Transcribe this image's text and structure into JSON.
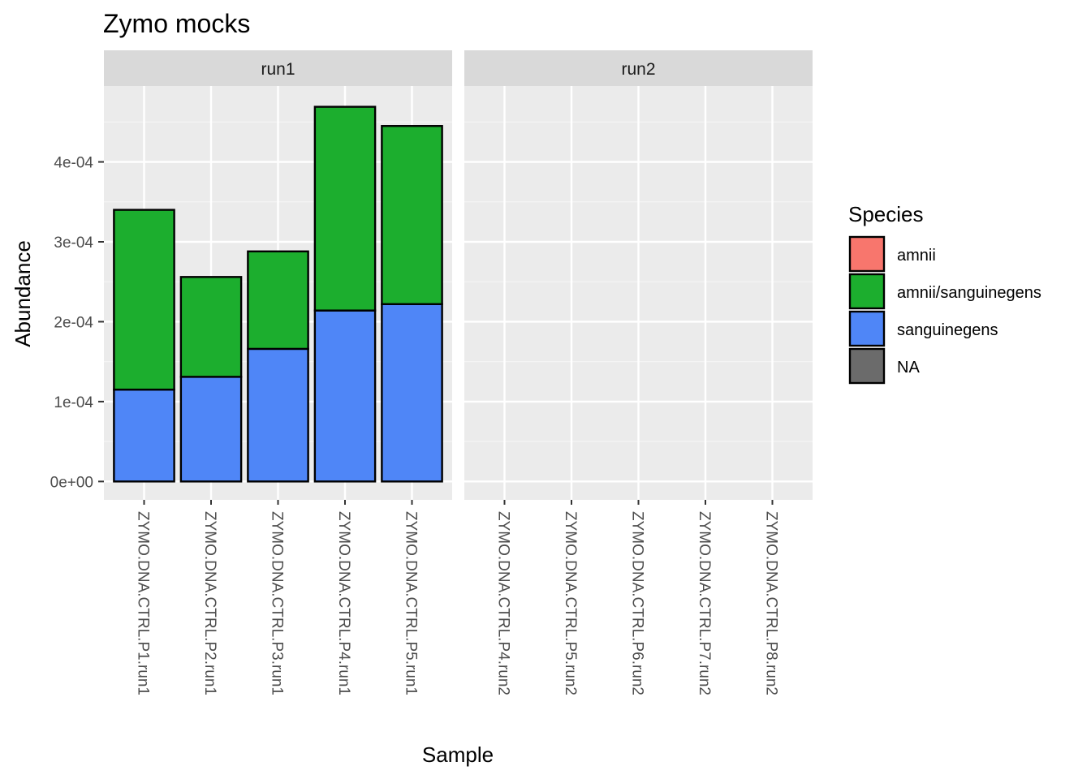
{
  "chart_data": {
    "type": "bar",
    "stacked": true,
    "title": "Zymo mocks",
    "xlabel": "Sample",
    "ylabel": "Abundance",
    "ylim": [
      -2.3e-05,
      0.000495
    ],
    "yticks": [
      0,
      0.0001,
      0.0002,
      0.0003,
      0.0004
    ],
    "ytick_labels": [
      "0e+00",
      "1e-04",
      "2e-04",
      "3e-04",
      "4e-04"
    ],
    "grid": true,
    "legend_position": "right",
    "legend": {
      "title": "Species",
      "items": [
        {
          "label": "amnii",
          "color": "#F8766D"
        },
        {
          "label": "amnii/sanguinegens",
          "color": "#1CAE2E"
        },
        {
          "label": "sanguinegens",
          "color": "#4F86F7"
        },
        {
          "label": "NA",
          "color": "#6B6B6B"
        }
      ]
    },
    "panels": [
      {
        "name": "run1",
        "categories": [
          "ZYMO.DNA.CTRL.P1.run1",
          "ZYMO.DNA.CTRL.P2.run1",
          "ZYMO.DNA.CTRL.P3.run1",
          "ZYMO.DNA.CTRL.P4.run1",
          "ZYMO.DNA.CTRL.P5.run1"
        ],
        "series": [
          {
            "name": "sanguinegens",
            "values": [
              0.000115,
              0.000131,
              0.000166,
              0.000214,
              0.000222
            ]
          },
          {
            "name": "amnii/sanguinegens",
            "values": [
              0.000225,
              0.000125,
              0.000122,
              0.000255,
              0.000223
            ]
          }
        ]
      },
      {
        "name": "run2",
        "categories": [
          "ZYMO.DNA.CTRL.P4.run2",
          "ZYMO.DNA.CTRL.P5.run2",
          "ZYMO.DNA.CTRL.P6.run2",
          "ZYMO.DNA.CTRL.P7.run2",
          "ZYMO.DNA.CTRL.P8.run2"
        ],
        "series": [
          {
            "name": "sanguinegens",
            "values": [
              0,
              0,
              0,
              0,
              0
            ]
          },
          {
            "name": "amnii/sanguinegens",
            "values": [
              0,
              0,
              0,
              0,
              0
            ]
          }
        ]
      }
    ]
  }
}
